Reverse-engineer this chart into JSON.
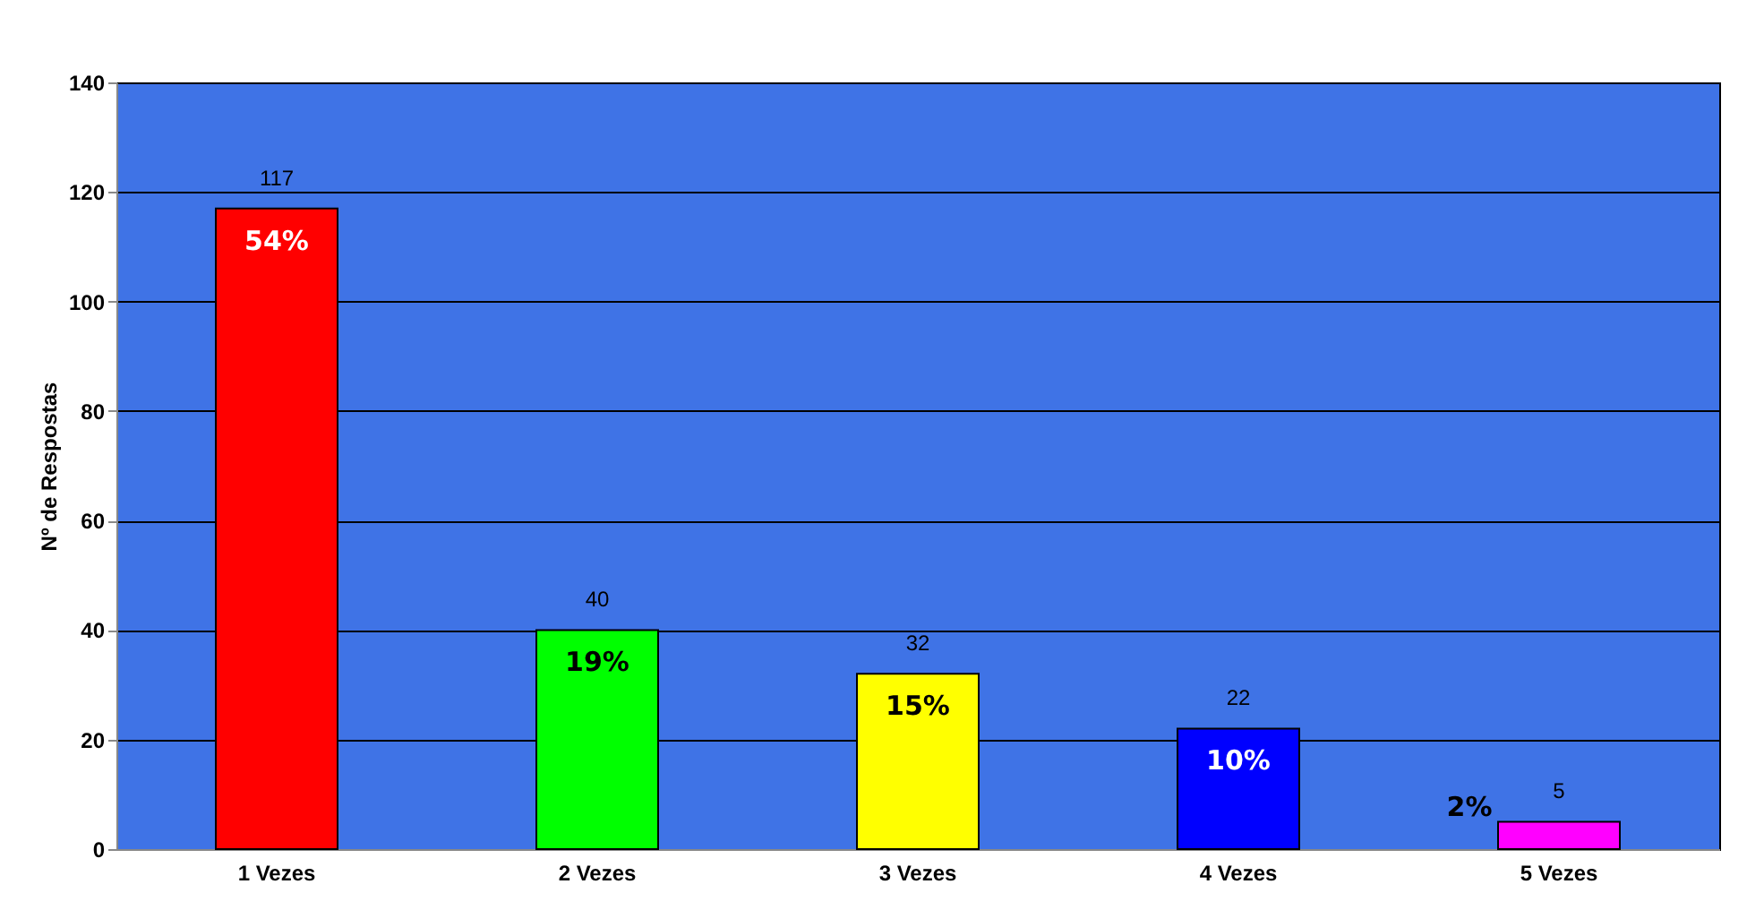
{
  "chart_data": {
    "type": "bar",
    "ylabel": "Nº de Respostas",
    "categories": [
      "1 Vezes",
      "2 Vezes",
      "3 Vezes",
      "4 Vezes",
      "5 Vezes"
    ],
    "values": [
      117,
      40,
      32,
      22,
      5
    ],
    "colors": [
      "#ff0000",
      "#00ff00",
      "#ffff00",
      "#0000ff",
      "#ff00ff"
    ],
    "ylim": [
      0,
      140
    ],
    "yticks": [
      0,
      20,
      40,
      60,
      80,
      100,
      120,
      140
    ],
    "grid": "y",
    "data_labels": true,
    "annotations": [
      "54%",
      "19%",
      "15%",
      "10%",
      "2%"
    ]
  }
}
